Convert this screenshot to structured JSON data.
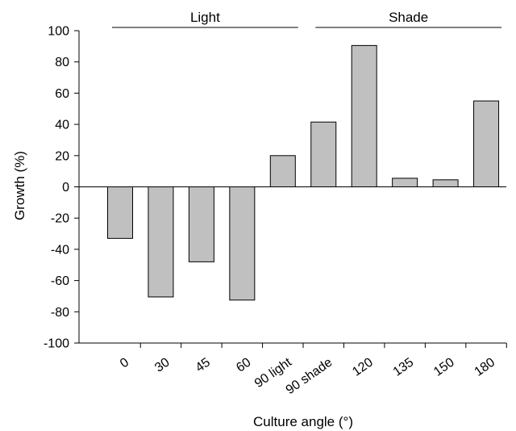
{
  "chart_data": {
    "type": "bar",
    "title": "",
    "xlabel": "Culture angle (°)",
    "ylabel": "Growth (%)",
    "ylim": [
      -100,
      100
    ],
    "yticks": [
      -100,
      -80,
      -60,
      -40,
      -20,
      0,
      20,
      40,
      60,
      80,
      100
    ],
    "categories": [
      "0",
      "30",
      "45",
      "60",
      "90 light",
      "90 shade",
      "120",
      "135",
      "150",
      "180"
    ],
    "values": [
      -33,
      -70.5,
      -48,
      -72.5,
      20,
      41.5,
      90.5,
      5.5,
      4.5,
      55
    ],
    "bar_color": "#c0c0c0",
    "grid": false,
    "groups": [
      {
        "label": "Light",
        "first_category": "0",
        "last_category": "90 light"
      },
      {
        "label": "Shade",
        "first_category": "90 shade",
        "last_category": "180"
      }
    ]
  }
}
